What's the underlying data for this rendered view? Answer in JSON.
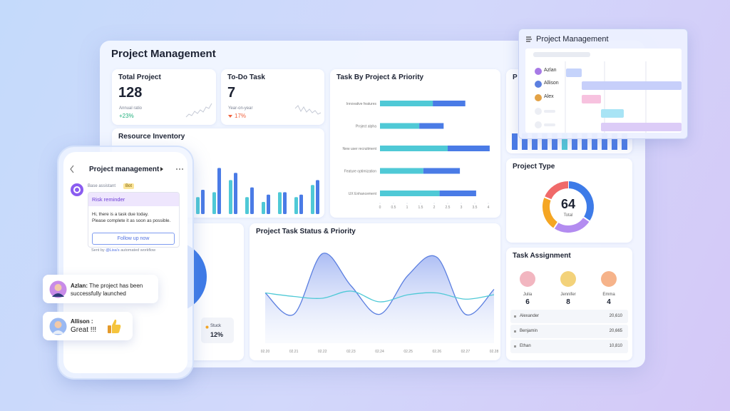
{
  "header": {
    "title": "Project Management"
  },
  "total_project": {
    "title": "Total Project",
    "value": 128,
    "ratio_label": "Annual ratio",
    "ratio": "+23%"
  },
  "todo_task": {
    "title": "To-Do Task",
    "value": 7,
    "ratio_label": "Year-on-year",
    "ratio": "17%"
  },
  "partial_card": {
    "title": "P"
  },
  "chart_data": [
    {
      "type": "bar",
      "title": "Resource Inventory",
      "ylim": [
        0,
        100
      ],
      "series": [
        {
          "color": "#4fc9d6",
          "values": [
            35,
            45,
            70,
            35,
            25,
            45,
            35,
            60
          ]
        },
        {
          "color": "#4a7be6",
          "values": [
            50,
            95,
            85,
            55,
            40,
            45,
            40,
            70
          ]
        }
      ]
    },
    {
      "type": "hbar",
      "title": "Task By Project & Priority",
      "stacked": true,
      "categories": [
        "Innovative features",
        "Project alpha",
        "New user recruitment",
        "Feature optimization",
        "UX Enhancement"
      ],
      "series": [
        {
          "color": "#4fc9d6",
          "values": [
            1.95,
            1.45,
            2.5,
            1.6,
            2.2
          ]
        },
        {
          "color": "#4a7be6",
          "values": [
            1.2,
            0.9,
            1.55,
            1.35,
            1.35
          ]
        }
      ],
      "xlim": [
        0,
        4
      ],
      "xticks": [
        0,
        0.5,
        1,
        1.5,
        2,
        2.5,
        3,
        3.5,
        4
      ]
    },
    {
      "type": "area",
      "title": "Project Task Status & Priority",
      "categories": [
        "02.20",
        "02.21",
        "02.22",
        "02.23",
        "02.24",
        "02.25",
        "02.26",
        "02.27",
        "02.28"
      ],
      "ylim": [
        0,
        100
      ],
      "series": [
        {
          "color": "#5b7fe0",
          "values": [
            50,
            26,
            94,
            58,
            26,
            70,
            90,
            26,
            54
          ]
        },
        {
          "color": "#4fc9d6",
          "values": [
            50,
            46,
            44,
            52,
            40,
            48,
            50,
            43,
            48
          ]
        }
      ]
    },
    {
      "type": "donut",
      "title": "Project Type",
      "center_value": 64,
      "center_label": "Total",
      "values": [
        22,
        16,
        14,
        12
      ],
      "colors": [
        "#3d7be8",
        "#b38cf0",
        "#f5a623",
        "#f06a6a"
      ]
    }
  ],
  "task_assignment": {
    "title": "Task Assignment",
    "people": [
      {
        "name": "Julia",
        "count": 6
      },
      {
        "name": "Jennifer",
        "count": 8
      },
      {
        "name": "Emma",
        "count": 4
      }
    ],
    "rows": [
      [
        "Alexander",
        "20,610"
      ],
      [
        "Benjamin",
        "20,665"
      ],
      [
        "Ethan",
        "10,810"
      ]
    ]
  },
  "status_card": {
    "label": "Stuck",
    "value": "12%"
  },
  "gantt": {
    "title": "Project Management",
    "names": [
      "Azlan",
      "Allison",
      "Alex"
    ]
  },
  "phone": {
    "title": "Project management",
    "assistant": "Base assistant",
    "badge": "Bot",
    "card_title": "Risk reminder",
    "lines": [
      "Hi, there is a task due today.",
      "Please complete it as soon as possible."
    ],
    "button": "Follow up now",
    "footer": [
      "Sent by",
      "@Lisa's",
      "automated workflow"
    ]
  },
  "chats": [
    {
      "name": "Azlan:",
      "message": "The project has been successfully launched"
    },
    {
      "name": "Allison :",
      "message": "Great !!!"
    }
  ]
}
